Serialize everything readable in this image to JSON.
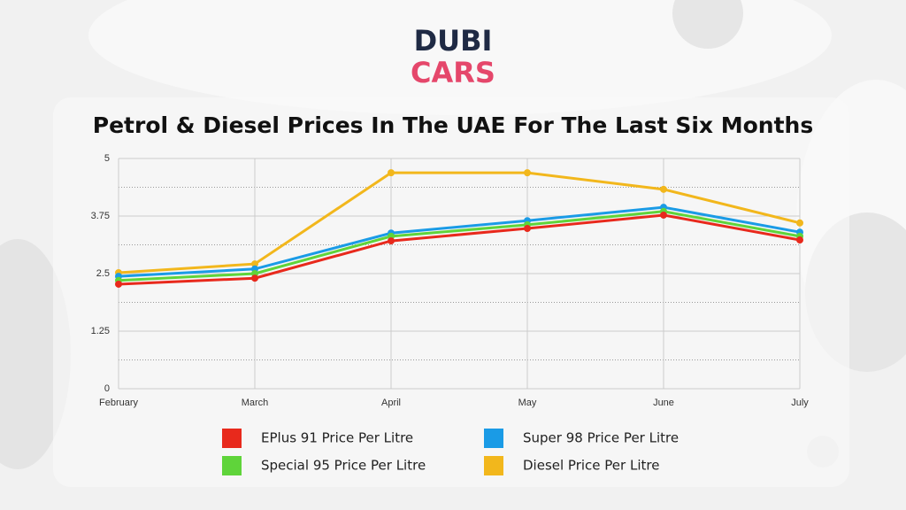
{
  "brand": {
    "line1": "DUBI",
    "line2": "CARS"
  },
  "chart_data": {
    "type": "line",
    "title": "Petrol & Diesel Prices In The UAE For The Last Six Months",
    "categories": [
      "February",
      "March",
      "April",
      "May",
      "June",
      "July"
    ],
    "series": [
      {
        "name": "EPlus 91 Price Per Litre",
        "color": "#e8291c",
        "values": [
          2.27,
          2.4,
          3.21,
          3.48,
          3.77,
          3.23
        ]
      },
      {
        "name": "Special 95 Price Per Litre",
        "color": "#5fd43a",
        "values": [
          2.35,
          2.5,
          3.31,
          3.56,
          3.85,
          3.31
        ]
      },
      {
        "name": "Super 98 Price Per Litre",
        "color": "#1a9be6",
        "values": [
          2.44,
          2.6,
          3.38,
          3.65,
          3.94,
          3.4
        ]
      },
      {
        "name": "Diesel Price Per Litre",
        "color": "#f2b71c",
        "values": [
          2.52,
          2.71,
          4.69,
          4.69,
          4.33,
          3.6
        ]
      }
    ],
    "ylim": [
      0,
      5
    ],
    "yticks": [
      0,
      1.25,
      2.5,
      3.75,
      5
    ],
    "minor_yticks": [
      0.625,
      1.875,
      3.125,
      4.375
    ],
    "grid": true
  }
}
